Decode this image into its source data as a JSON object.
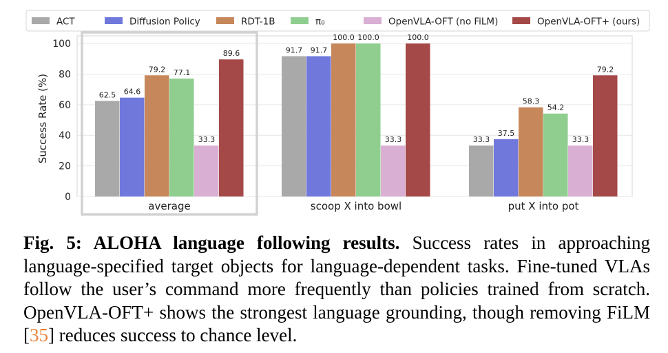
{
  "chart_data": {
    "type": "bar",
    "ylabel": "Success Rate (%)",
    "xlabel": "",
    "ylim": [
      0,
      105
    ],
    "yticks": [
      0,
      20,
      40,
      60,
      80,
      100
    ],
    "grid": "horizontal",
    "legend_position": "top",
    "categories": [
      "average",
      "scoop X into bowl",
      "put X into pot"
    ],
    "highlighted_category": "average",
    "series": [
      {
        "name": "ACT",
        "color": "#a9a9a9",
        "values": [
          62.5,
          91.7,
          33.3
        ],
        "labels": [
          "62.5",
          "91.7",
          "33.3"
        ]
      },
      {
        "name": "Diffusion Policy",
        "color": "#7078dc",
        "values": [
          64.6,
          91.7,
          37.5
        ],
        "labels": [
          "64.6",
          "91.7",
          "37.5"
        ]
      },
      {
        "name": "RDT-1B",
        "color": "#c6875a",
        "values": [
          79.2,
          100.0,
          58.3
        ],
        "labels": [
          "79.2",
          "100.0",
          "58.3"
        ]
      },
      {
        "name": "π₀",
        "color": "#8fce8f",
        "values": [
          77.1,
          100.0,
          54.2
        ],
        "labels": [
          "77.1",
          "100.0",
          "54.2"
        ]
      },
      {
        "name": "OpenVLA-OFT (no FiLM)",
        "color": "#d9b0d3",
        "values": [
          33.3,
          33.3,
          33.3
        ],
        "labels": [
          "33.3",
          "33.3",
          "33.3"
        ]
      },
      {
        "name": "OpenVLA-OFT+ (ours)",
        "color": "#a54848",
        "values": [
          89.6,
          100.0,
          79.2
        ],
        "labels": [
          "89.6",
          "100.0",
          "79.2"
        ]
      }
    ]
  },
  "caption": {
    "title": "Fig. 5: ALOHA language following results.",
    "text_before_cite": " Success rates in approaching language-specified target objects for language-dependent tasks. Fine-tuned VLAs follow the user’s command more frequently than policies trained from scratch. OpenVLA-OFT+ shows the strongest language grounding, though removing FiLM [",
    "cite": "35",
    "text_after_cite": "] reduces success to chance level."
  }
}
